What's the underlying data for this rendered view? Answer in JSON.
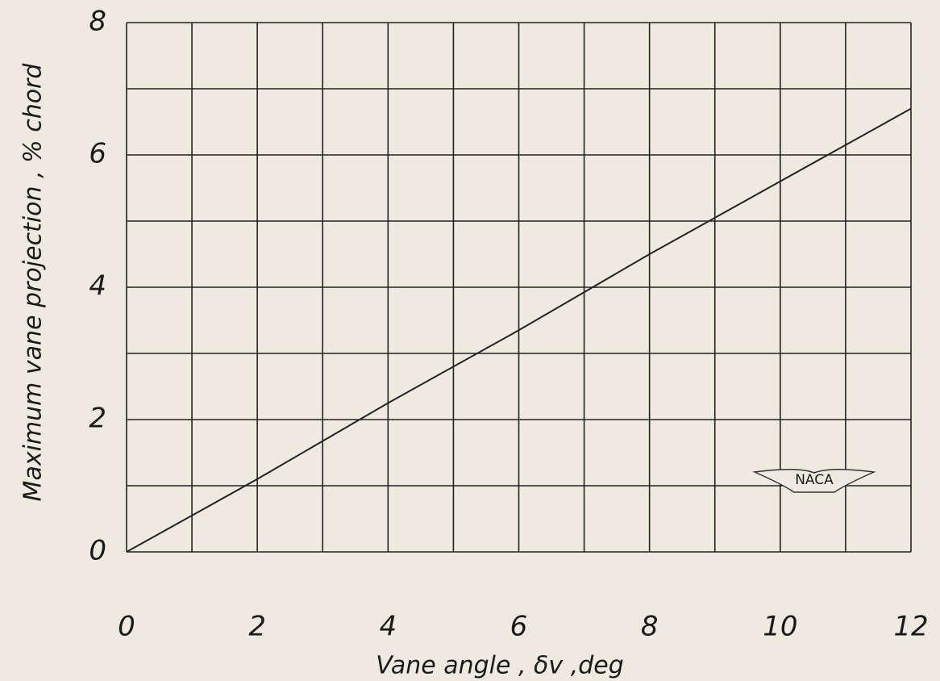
{
  "chart_data": {
    "type": "line",
    "xlabel": "Vane angle , δv ,deg",
    "ylabel": "Maximum  vane projection ,  % chord",
    "annotation": "NACA",
    "x": [
      0,
      2,
      4,
      6,
      8,
      10,
      12
    ],
    "series": [
      {
        "color": "#222222",
        "values": [
          0,
          1.1,
          2.25,
          3.35,
          4.5,
          5.6,
          6.7
        ]
      }
    ],
    "xlim": [
      0,
      12
    ],
    "ylim": [
      0,
      8
    ],
    "xticks": [
      0,
      2,
      4,
      6,
      8,
      10,
      12
    ],
    "yticks": [
      0,
      2,
      4,
      6,
      8
    ],
    "minor_xticks": [
      1,
      3,
      5,
      7,
      9,
      11
    ],
    "minor_yticks": [
      1,
      3,
      5,
      7
    ],
    "grid": true
  }
}
